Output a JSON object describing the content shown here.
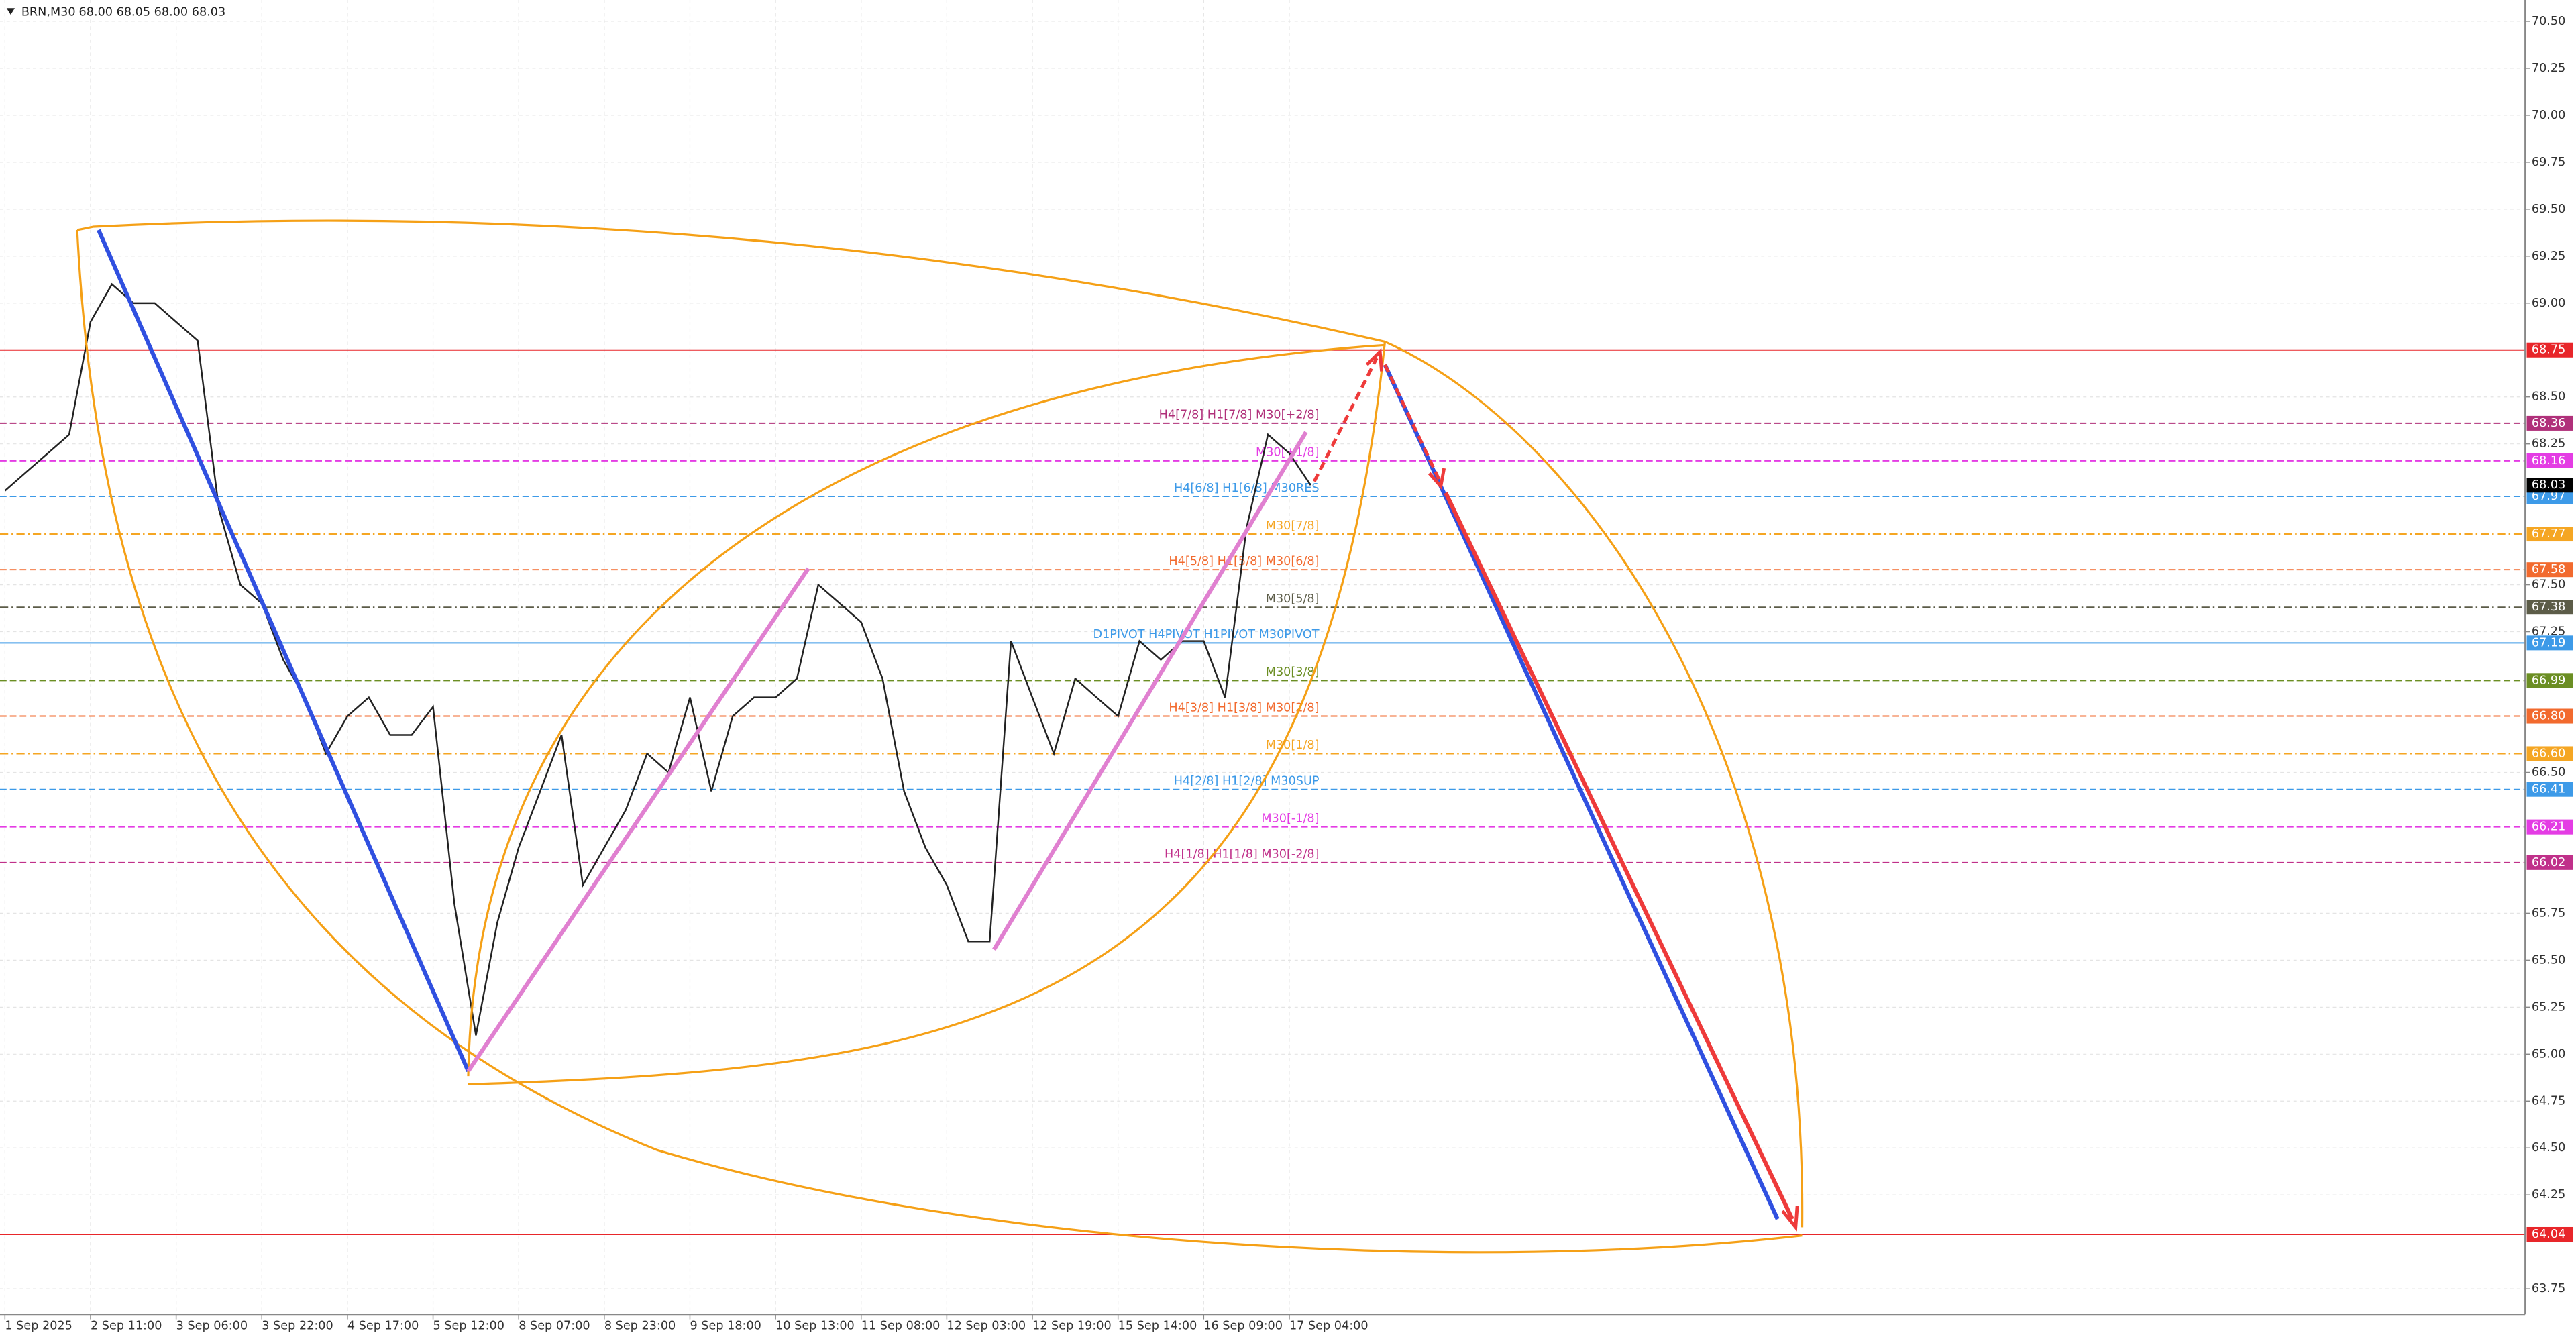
{
  "chart_data": {
    "type": "line",
    "title": "BRN,M30",
    "quote": "68.00 68.05 68.00 68.03",
    "categories": [
      "1 Sep 2025",
      null,
      null,
      null,
      "2 Sep 11:00",
      null,
      null,
      null,
      "3 Sep 06:00",
      null,
      null,
      null,
      "3 Sep 22:00",
      null,
      null,
      null,
      "4 Sep 17:00",
      null,
      null,
      null,
      "5 Sep 12:00",
      null,
      null,
      null,
      "8 Sep 07:00",
      null,
      null,
      null,
      "8 Sep 23:00",
      null,
      null,
      null,
      "9 Sep 18:00",
      null,
      null,
      null,
      "10 Sep 13:00",
      null,
      null,
      null,
      "11 Sep 08:00",
      null,
      null,
      null,
      "12 Sep 03:00",
      null,
      null,
      null,
      "12 Sep 19:00",
      null,
      null,
      null,
      "15 Sep 14:00",
      null,
      null,
      null,
      "16 Sep 09:00",
      null,
      null,
      null,
      "17 Sep 04:00",
      null
    ],
    "series": [
      {
        "name": "BRN",
        "color": "#222222",
        "values": [
          68.0,
          68.1,
          68.2,
          68.3,
          68.9,
          69.1,
          69.0,
          69.0,
          68.9,
          68.8,
          67.9,
          67.5,
          67.4,
          67.1,
          66.9,
          66.6,
          66.8,
          66.9,
          66.7,
          66.7,
          66.85,
          65.8,
          65.1,
          65.7,
          66.1,
          66.4,
          66.7,
          65.9,
          66.1,
          66.3,
          66.6,
          66.5,
          66.9,
          66.4,
          66.8,
          66.9,
          66.9,
          67.0,
          67.5,
          67.4,
          67.3,
          67.0,
          66.4,
          66.1,
          65.9,
          65.6,
          65.6,
          67.2,
          66.9,
          66.6,
          67.0,
          66.9,
          66.8,
          67.2,
          67.1,
          67.2,
          67.2,
          66.9,
          67.8,
          68.3,
          68.2,
          68.03
        ]
      }
    ],
    "ylim": [
      63.614,
      70.614
    ],
    "yticks": [
      {
        "value": 70.5,
        "label": "70.50"
      },
      {
        "value": 70.25,
        "label": "70.25"
      },
      {
        "value": 70.0,
        "label": "70.00"
      },
      {
        "value": 69.75,
        "label": "69.75"
      },
      {
        "value": 69.5,
        "label": "69.50"
      },
      {
        "value": 69.25,
        "label": "69.25"
      },
      {
        "value": 69.0,
        "label": "69.00"
      },
      {
        "value": 68.5,
        "label": "68.50"
      },
      {
        "value": 68.25,
        "label": "68.25"
      },
      {
        "value": 67.5,
        "label": "67.50"
      },
      {
        "value": 67.25,
        "label": "67.25"
      },
      {
        "value": 66.5,
        "label": "66.50"
      },
      {
        "value": 65.75,
        "label": "65.75"
      },
      {
        "value": 65.5,
        "label": "65.50"
      },
      {
        "value": 65.25,
        "label": "65.25"
      },
      {
        "value": 65.0,
        "label": "65.00"
      },
      {
        "value": 64.75,
        "label": "64.75"
      },
      {
        "value": 64.5,
        "label": "64.50"
      },
      {
        "value": 64.25,
        "label": "64.25"
      },
      {
        "value": 63.75,
        "label": "63.75"
      }
    ],
    "grid": true,
    "last_price": {
      "value": 68.03,
      "label": "68.03"
    },
    "levels": [
      {
        "price": {
          "value": 68.75,
          "label": "68.75"
        },
        "color": "#e8262a",
        "dash": "solid"
      },
      {
        "price": {
          "value": 68.36,
          "label": "68.36"
        },
        "color": "#b0307a",
        "dash": "dashed",
        "text": "H4[7/8] H1[7/8] M30[+2/8]"
      },
      {
        "price": {
          "value": 68.16,
          "label": "68.16"
        },
        "color": "#e43ce4",
        "dash": "dashed",
        "text": "M30[+1/8]"
      },
      {
        "price": {
          "value": 67.97,
          "label": "67.97"
        },
        "color": "#3d9ae8",
        "dash": "dashed",
        "text": "H4[6/8] H1[6/8] M30RES"
      },
      {
        "price": {
          "value": 67.77,
          "label": "67.77"
        },
        "color": "#f5a623",
        "dash": "dashdot",
        "text": "M30[7/8]"
      },
      {
        "price": {
          "value": 67.58,
          "label": "67.58"
        },
        "color": "#f26a2e",
        "dash": "dashed",
        "text": "H4[5/8] H1[5/8] M30[6/8]"
      },
      {
        "price": {
          "value": 67.38,
          "label": "67.38"
        },
        "color": "#5c5c48",
        "dash": "dashdot",
        "text": "M30[5/8]"
      },
      {
        "price": {
          "value": 67.19,
          "label": "67.19"
        },
        "color": "#3d9ae8",
        "dash": "solid",
        "text": "D1PIVOT H4PIVOT H1PIVOT M30PIVOT"
      },
      {
        "price": {
          "value": 66.99,
          "label": "66.99"
        },
        "color": "#6b8e23",
        "dash": "dashed",
        "text": "M30[3/8]"
      },
      {
        "price": {
          "value": 66.8,
          "label": "66.80"
        },
        "color": "#f26a2e",
        "dash": "dashed",
        "text": "H4[3/8] H1[3/8] M30[2/8]"
      },
      {
        "price": {
          "value": 66.6,
          "label": "66.60"
        },
        "color": "#f5a623",
        "dash": "dashdot",
        "text": "M30[1/8]"
      },
      {
        "price": {
          "value": 66.41,
          "label": "66.41"
        },
        "color": "#3d9ae8",
        "dash": "dashed",
        "text": "H4[2/8] H1[2/8] M30SUP"
      },
      {
        "price": {
          "value": 66.21,
          "label": "66.21"
        },
        "color": "#e43ce4",
        "dash": "dashed",
        "text": "M30[-1/8]"
      },
      {
        "price": {
          "value": 66.02,
          "label": "66.02"
        },
        "color": "#c0308a",
        "dash": "dashed",
        "text": "H4[1/8] H1[1/8] M30[-2/8]"
      },
      {
        "price": {
          "value": 64.04,
          "label": "64.04"
        },
        "color": "#e8262a",
        "dash": "solid"
      }
    ]
  }
}
